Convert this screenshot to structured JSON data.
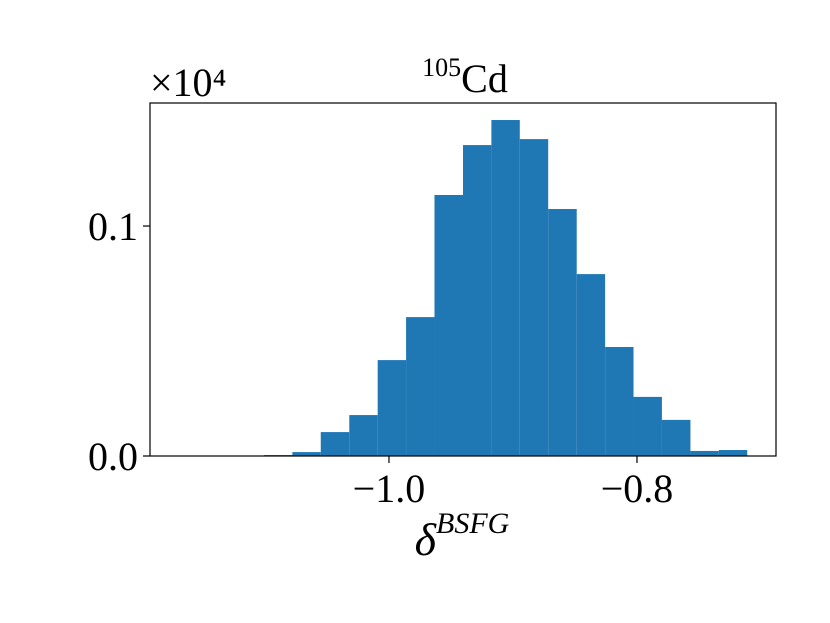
{
  "chart_data": {
    "type": "histogram",
    "title_sup": "105",
    "title": "Cd",
    "offset_text": "×10⁴",
    "xlabel": "δ",
    "xlabel_sup": "BSFG",
    "bins": [
      -1.1008,
      -1.0779,
      -1.055,
      -1.032,
      -1.0091,
      -0.9862,
      -0.9633,
      -0.9403,
      -0.9174,
      -0.8945,
      -0.8716,
      -0.8486,
      -0.8257,
      -0.8028,
      -0.7799,
      -0.7569,
      -0.734,
      -0.7111
    ],
    "values": [
      0.0004,
      0.0017,
      0.0104,
      0.0178,
      0.0417,
      0.0604,
      0.1135,
      0.1352,
      0.1461,
      0.1378,
      0.1074,
      0.0791,
      0.0474,
      0.0257,
      0.0157,
      0.0022,
      0.0026
    ],
    "color": "#1f77b4",
    "xlim": [
      -1.1927,
      -0.6879
    ],
    "ylim": [
      0,
      0.1535
    ],
    "xticks": [
      {
        "value": -1.0,
        "label": "−1.0"
      },
      {
        "value": -0.8,
        "label": "−0.8"
      }
    ],
    "yticks": [
      {
        "value": 0,
        "label": "0.0"
      },
      0.1
    ]
  }
}
